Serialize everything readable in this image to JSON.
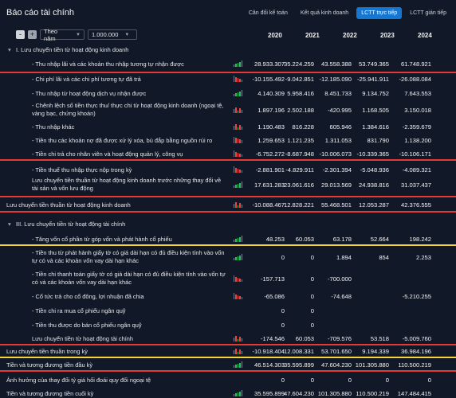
{
  "title": "Báo cáo tài chính",
  "tabs": [
    {
      "label": "Cân đối kế toán",
      "active": false
    },
    {
      "label": "Kết quả kinh doanh",
      "active": false
    },
    {
      "label": "LCTT trực tiếp",
      "active": true
    },
    {
      "label": "LCTT gián tiếp",
      "active": false
    }
  ],
  "controls": {
    "period": "Theo năm",
    "unit": "1.000.000",
    "minus": "-",
    "plus": "+"
  },
  "years": [
    "2020",
    "2021",
    "2022",
    "2023",
    "2024"
  ],
  "colors": {
    "accent": "#1677d2",
    "up": "#22c55e",
    "down": "#ef4444",
    "red_line": "#e53935",
    "yellow_line": "#f5d33b"
  },
  "rows": [
    {
      "label": "I. Lưu chuyển tiền từ hoạt động kinh doanh",
      "values": [
        "",
        "",
        "",
        "",
        ""
      ]
    },
    {
      "label": "- Thu nhập lãi và các khoản thu nhập tương tự nhận được",
      "values": [
        "28.933.307",
        "35.224.259",
        "43.558.388",
        "53.749.365",
        "61.748.921"
      ]
    },
    {
      "label": "- Chi phí lãi và các chi phí tương tự đã trả",
      "values": [
        "-10.155.492",
        "-9.042.851",
        "-12.185.090",
        "-25.941.911",
        "-26.088.084"
      ]
    },
    {
      "label": "- Thu nhập từ hoạt động dịch vụ nhận được",
      "values": [
        "4.140.309",
        "5.958.416",
        "8.451.733",
        "9.134.752",
        "7.643.553"
      ]
    },
    {
      "label": "- Chênh lệch số tiền thực thu/ thực chi từ hoạt động kinh doanh (ngoại tệ, vàng bạc, chứng khoán)",
      "line1": "- Chênh lệch số tiền thực thu/ thực chi từ hoạt động kinh doanh (ngoại tệ,",
      "line2": "vàng bạc, chứng khoán)",
      "values": [
        "1.897.196",
        "2.502.188",
        "-420.995",
        "1.168.505",
        "3.150.018"
      ]
    },
    {
      "label": "- Thu nhập khác",
      "values": [
        "1.190.483",
        "816.228",
        "605.946",
        "1.384.616",
        "-2.359.679"
      ]
    },
    {
      "label": "- Tiền thu các khoản nợ đã được xử lý xóa, bù đắp bằng nguồn rủi ro",
      "values": [
        "1.259.653",
        "1.121.235",
        "1.311.053",
        "831.790",
        "1.138.200"
      ]
    },
    {
      "label": "- Tiền chi trả cho nhân viên và hoạt động quản lý, công vụ",
      "values": [
        "-6.752.272",
        "-8.687.948",
        "-10.006.073",
        "-10.339.365",
        "-10.106.171"
      ]
    },
    {
      "label": "- Tiền thuế thu nhập thực nộp trong kỳ",
      "values": [
        "-2.881.901",
        "-4.829.911",
        "-2.301.394",
        "-5.048.936",
        "-4.089.321"
      ]
    },
    {
      "label": "Lưu chuyển tiền thuần từ hoạt động kinh doanh trước những thay đổi về tài sản và vốn lưu động",
      "line1": "Lưu chuyển tiền thuần từ hoạt động kinh doanh trước những thay đổi về",
      "line2": "tài sản và vốn lưu động",
      "values": [
        "17.631.283",
        "23.061.616",
        "29.013.569",
        "24.938.816",
        "31.037.437"
      ]
    },
    {
      "label": "Lưu chuyển tiền thuần từ hoạt động kinh doanh",
      "values": [
        "-10.088.467",
        "12.828.221",
        "55.468.501",
        "12.053.287",
        "42.376.555"
      ]
    },
    {
      "label": "III. Lưu chuyển tiền từ hoạt động tài chính",
      "values": [
        "",
        "",
        "",
        "",
        ""
      ]
    },
    {
      "label": "- Tăng vốn cổ phần từ góp vốn và phát hành cổ phiếu",
      "values": [
        "48.253",
        "60.053",
        "63.178",
        "52.664",
        "198.242"
      ]
    },
    {
      "label": "- Tiền thu từ phát hành giấy tờ có giá dài hạn có đủ điều kiện tính vào vốn tự có và các khoản vốn vay dài hạn khác",
      "line1": "- Tiền thu từ phát hành giấy tờ có giá dài hạn có đủ điều kiện tính vào vốn",
      "line2": "tự có và các khoản vốn vay dài hạn khác",
      "values": [
        "0",
        "0",
        "1.894",
        "854",
        "2.253"
      ]
    },
    {
      "label": "- Tiền chi thanh toán giấy tờ có giá dài hạn có đủ điều kiện tính vào vốn tự có và các khoản vốn vay dài hạn khác",
      "line1": "- Tiền chi thanh toán giấy tờ có giá dài hạn có đủ điều kiện tính vào vốn tự",
      "line2": "có và các khoản vốn vay dài hạn khác",
      "values": [
        "-157.713",
        "0",
        "-700.000",
        "",
        ""
      ]
    },
    {
      "label": "- Cổ tức trả cho cổ đông, lợi nhuận đã chia",
      "values": [
        "-65.086",
        "0",
        "-74.648",
        "",
        "-5.210.255"
      ]
    },
    {
      "label": "- Tiền chi ra mua cổ phiếu ngân quỹ",
      "values": [
        "0",
        "0",
        "",
        "",
        ""
      ]
    },
    {
      "label": "- Tiền thu được do bán cổ phiếu ngân quỹ",
      "values": [
        "0",
        "0",
        "",
        "",
        ""
      ]
    },
    {
      "label": "Lưu chuyển tiền từ hoạt động tài chính",
      "values": [
        "-174.546",
        "60.053",
        "-709.576",
        "53.518",
        "-5.009.760"
      ]
    },
    {
      "label": "Lưu chuyển tiền thuần trong kỳ",
      "values": [
        "-10.918.404",
        "12.008.331",
        "53.701.650",
        "9.194.339",
        "36.984.196"
      ]
    },
    {
      "label": "Tiền và tương đương tiền đầu kỳ",
      "values": [
        "46.514.303",
        "35.595.899",
        "47.604.230",
        "101.305.880",
        "110.500.219"
      ]
    },
    {
      "label": "Ảnh hưởng của thay đổi tỷ giá hối đoái quy đổi ngoại tệ",
      "values": [
        "0",
        "0",
        "0",
        "0",
        "0"
      ]
    },
    {
      "label": "Tiền và tương đương tiền cuối kỳ",
      "values": [
        "35.595.899",
        "47.604.230",
        "101.305.880",
        "110.500.219",
        "147.484.415"
      ]
    }
  ]
}
